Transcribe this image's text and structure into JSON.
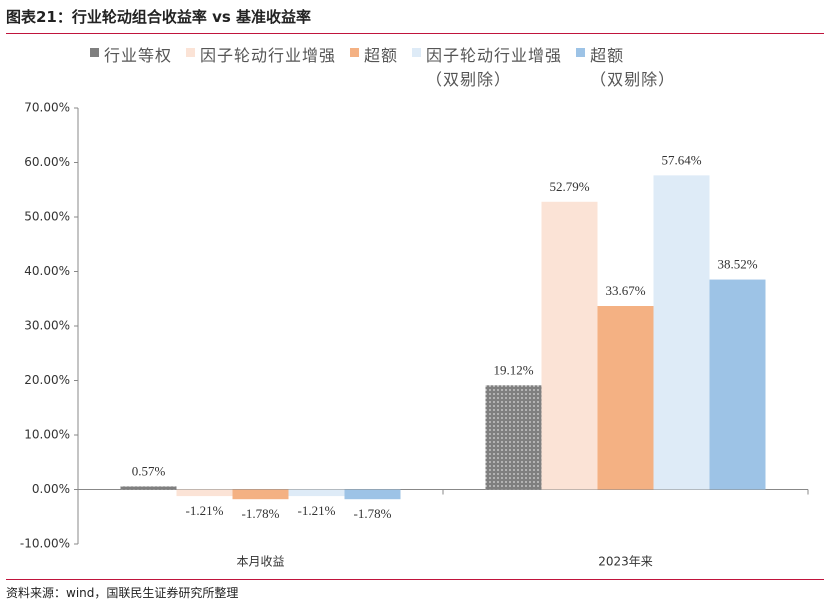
{
  "title": "图表21：行业轮动组合收益率 vs 基准收益率",
  "source": "资料来源：wind，国联民生证券研究所整理",
  "chart_data": {
    "type": "bar",
    "categories": [
      "本月收益",
      "2023年来"
    ],
    "series": [
      {
        "name": "行业等权",
        "color": "#7f7f7f",
        "values": [
          0.57,
          19.12
        ],
        "value_labels": [
          "0.57%",
          "19.12%"
        ]
      },
      {
        "name": "因子轮动行业增强",
        "color": "#fbe3d6",
        "values": [
          -1.21,
          52.79
        ],
        "value_labels": [
          "-1.21%",
          "52.79%"
        ]
      },
      {
        "name": "超额",
        "color": "#f4b183",
        "values": [
          -1.78,
          33.67
        ],
        "value_labels": [
          "-1.78%",
          "33.67%"
        ]
      },
      {
        "name": "因子轮动行业增强（双剔除）",
        "color": "#deebf7",
        "values": [
          -1.21,
          57.64
        ],
        "value_labels": [
          "-1.21%",
          "57.64%"
        ]
      },
      {
        "name": "超额（双剔除）",
        "color": "#9dc3e6",
        "values": [
          -1.78,
          38.52
        ],
        "value_labels": [
          "-1.78%",
          "38.52%"
        ]
      }
    ],
    "ylim": [
      -10,
      70
    ],
    "yticks": [
      {
        "value": -10,
        "label": "-10.00%"
      },
      {
        "value": 0,
        "label": "0.00%"
      },
      {
        "value": 10,
        "label": "10.00%"
      },
      {
        "value": 20,
        "label": "20.00%"
      },
      {
        "value": 30,
        "label": "30.00%"
      },
      {
        "value": 40,
        "label": "40.00%"
      },
      {
        "value": 50,
        "label": "50.00%"
      },
      {
        "value": 60,
        "label": "60.00%"
      },
      {
        "value": 70,
        "label": "70.00%"
      }
    ]
  }
}
